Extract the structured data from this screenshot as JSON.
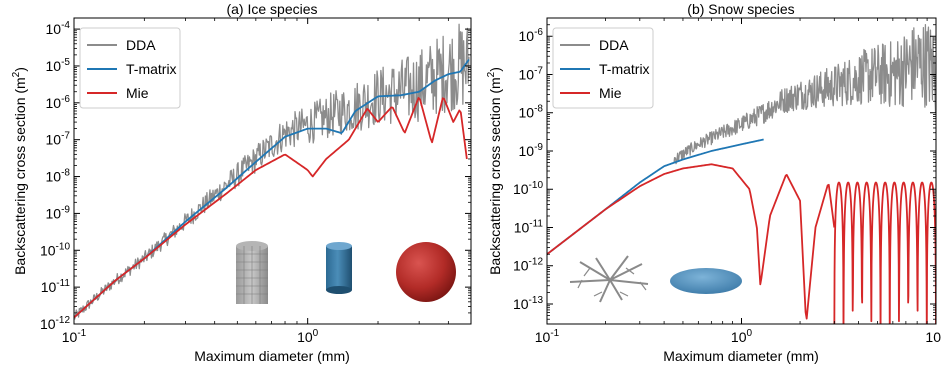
{
  "chart_data": [
    {
      "type": "line",
      "title": "(a) Ice species",
      "xlabel": "Maximum diameter (mm)",
      "ylabel": "Backscattering cross section (m",
      "ylabel_unit_sup": "2",
      "ylabel_close": ")",
      "xscale": "log",
      "yscale": "log",
      "xlim": [
        0.1,
        5.0
      ],
      "ylim": [
        1e-12,
        0.0002
      ],
      "x_ticks": [
        {
          "base": "10",
          "exp": "-1",
          "value": 0.1
        },
        {
          "base": "10",
          "exp": "0",
          "value": 1
        }
      ],
      "y_ticks": [
        {
          "base": "10",
          "exp": "-12",
          "value": 1e-12
        },
        {
          "base": "10",
          "exp": "-11",
          "value": 1e-11
        },
        {
          "base": "10",
          "exp": "-10",
          "value": 1e-10
        },
        {
          "base": "10",
          "exp": "-9",
          "value": 1e-09
        },
        {
          "base": "10",
          "exp": "-8",
          "value": 1e-08
        },
        {
          "base": "10",
          "exp": "-7",
          "value": 1e-07
        },
        {
          "base": "10",
          "exp": "-6",
          "value": 1e-06
        },
        {
          "base": "10",
          "exp": "-5",
          "value": 1e-05
        },
        {
          "base": "10",
          "exp": "-4",
          "value": 0.0001
        }
      ],
      "grid": false,
      "legend_position": "top-left",
      "series": [
        {
          "name": "DDA",
          "color": "#8c8c8c",
          "noisy": true,
          "x": [
            0.1,
            0.15,
            0.2,
            0.3,
            0.45,
            0.6,
            0.8,
            1.0,
            1.3,
            1.6,
            2.0,
            2.5,
            3.0,
            3.5,
            4.0,
            4.5,
            4.9
          ],
          "y": [
            1.5e-12,
            1.5e-11,
            6e-11,
            6e-10,
            6e-09,
            3e-08,
            1.5e-07,
            2.5e-07,
            5e-07,
            8e-07,
            1.5e-06,
            2e-06,
            3e-06,
            5e-06,
            8e-06,
            1e-05,
            1e-05
          ]
        },
        {
          "name": "T-matrix",
          "color": "#1f77b4",
          "noisy": false,
          "x": [
            0.1,
            0.15,
            0.2,
            0.3,
            0.45,
            0.6,
            0.8,
            1.0,
            1.2,
            1.4,
            1.6,
            2.0,
            2.5,
            3.0,
            3.5,
            4.0,
            4.5,
            4.9
          ],
          "y": [
            1.5e-12,
            1.5e-11,
            6e-11,
            6e-10,
            5e-09,
            2.5e-08,
            1.2e-07,
            2e-07,
            2e-07,
            1.5e-07,
            6e-07,
            1.5e-06,
            1.6e-06,
            2e-06,
            4e-06,
            6e-06,
            7e-06,
            1.5e-05
          ]
        },
        {
          "name": "Mie",
          "color": "#d62728",
          "noisy": false,
          "x": [
            0.1,
            0.15,
            0.2,
            0.3,
            0.45,
            0.6,
            0.8,
            1.0,
            1.05,
            1.2,
            1.5,
            1.8,
            2.0,
            2.3,
            2.6,
            3.0,
            3.4,
            3.8,
            4.2,
            4.5,
            4.8
          ],
          "y": [
            1.5e-12,
            1.5e-11,
            6e-11,
            5e-10,
            3.5e-09,
            1.5e-08,
            4e-08,
            1.5e-08,
            1e-08,
            3e-08,
            1e-07,
            7e-07,
            3e-07,
            8e-07,
            1.5e-07,
            1.5e-06,
            8e-08,
            1.5e-06,
            3e-07,
            7e-07,
            3e-08
          ]
        }
      ],
      "insets": [
        "hexagonal-column-dda",
        "cylinder",
        "sphere"
      ]
    },
    {
      "type": "line",
      "title": "(b) Snow species",
      "xlabel": "Maximum diameter (mm)",
      "ylabel": "Backscattering cross section (m",
      "ylabel_unit_sup": "2",
      "ylabel_close": ")",
      "xscale": "log",
      "yscale": "log",
      "xlim": [
        0.1,
        10.0
      ],
      "ylim": [
        3e-14,
        3e-06
      ],
      "x_ticks": [
        {
          "base": "10",
          "exp": "-1",
          "value": 0.1
        },
        {
          "base": "10",
          "exp": "0",
          "value": 1
        },
        {
          "base": "10",
          "exp": "1",
          "value": 10
        }
      ],
      "y_ticks": [
        {
          "base": "10",
          "exp": "-13",
          "value": 1e-13
        },
        {
          "base": "10",
          "exp": "-12",
          "value": 1e-12
        },
        {
          "base": "10",
          "exp": "-11",
          "value": 1e-11
        },
        {
          "base": "10",
          "exp": "-10",
          "value": 1e-10
        },
        {
          "base": "10",
          "exp": "-9",
          "value": 1e-09
        },
        {
          "base": "10",
          "exp": "-8",
          "value": 1e-08
        },
        {
          "base": "10",
          "exp": "-7",
          "value": 1e-07
        },
        {
          "base": "10",
          "exp": "-6",
          "value": 1e-06
        }
      ],
      "grid": false,
      "legend_position": "top-left",
      "series": [
        {
          "name": "DDA",
          "color": "#8c8c8c",
          "noisy": true,
          "x": [
            0.45,
            0.6,
            0.8,
            1.0,
            1.3,
            1.6,
            2.0,
            2.5,
            3.0,
            4.0,
            5.0,
            6.0,
            7.0,
            8.0,
            9.0,
            10.0
          ],
          "y": [
            6e-10,
            1.5e-09,
            3e-09,
            5e-09,
            1e-08,
            2e-08,
            3e-08,
            4e-08,
            5e-08,
            8e-08,
            1e-07,
            1e-07,
            1.5e-07,
            2e-07,
            2e-07,
            1e-07
          ]
        },
        {
          "name": "T-matrix",
          "color": "#1f77b4",
          "noisy": false,
          "x": [
            0.1,
            0.2,
            0.3,
            0.4,
            0.5,
            0.7,
            1.0,
            1.3
          ],
          "y": [
            2e-12,
            3e-11,
            1.5e-10,
            4e-10,
            6e-10,
            1e-09,
            1.5e-09,
            2e-09
          ]
        },
        {
          "name": "Mie",
          "color": "#d62728",
          "noisy": false,
          "x": [
            0.1,
            0.2,
            0.3,
            0.4,
            0.5,
            0.7,
            0.9,
            1.1,
            1.2,
            1.25,
            1.4,
            1.7,
            2.0,
            2.15,
            2.4,
            2.8,
            3.0
          ],
          "y": [
            2e-12,
            3e-11,
            1.2e-10,
            2.5e-10,
            3.5e-10,
            4.5e-10,
            3.5e-10,
            1e-10,
            1e-11,
            3e-13,
            2e-11,
            2.5e-10,
            5e-11,
            3e-14,
            1e-11,
            1.5e-10,
            1e-11
          ]
        },
        {
          "name": "",
          "color": "#d62728",
          "noisy": false,
          "mie_tail": true,
          "x": [
            3.0,
            10.0
          ],
          "y": [
            1.5e-10,
            1.5e-10
          ]
        }
      ],
      "insets": [
        "dendrite-aggregate",
        "oblate-spheroid"
      ]
    }
  ]
}
